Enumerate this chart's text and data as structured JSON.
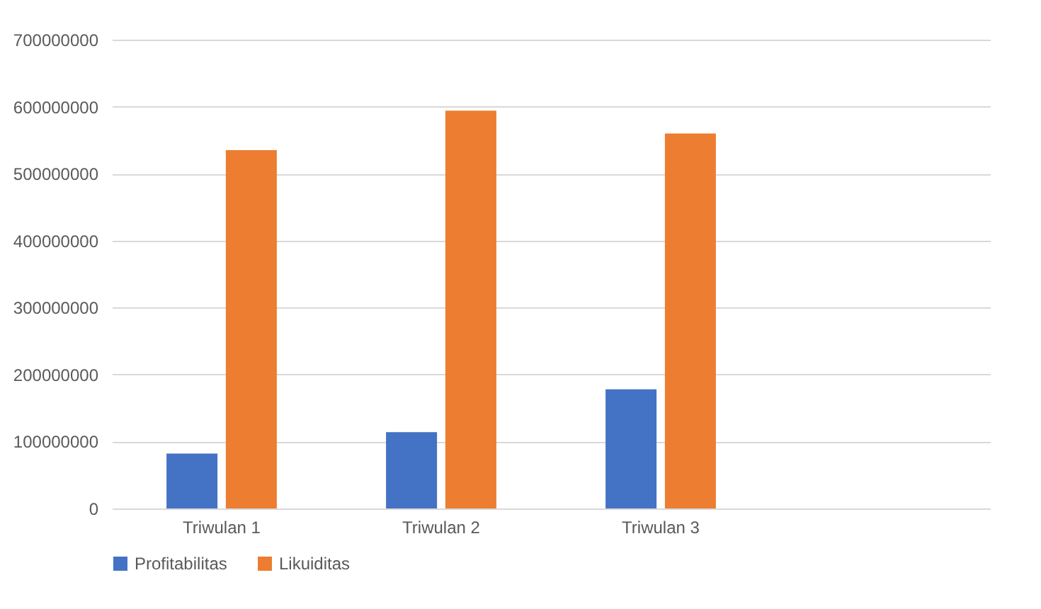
{
  "chart_data": {
    "type": "bar",
    "categories": [
      "Triwulan 1",
      "Triwulan 2",
      "Triwulan 3",
      null
    ],
    "series": [
      {
        "name": "Profitabilitas",
        "color": "#4472c4",
        "values": [
          82000000,
          114000000,
          178000000,
          null
        ]
      },
      {
        "name": "Likuiditas",
        "color": "#ed7d31",
        "values": [
          535000000,
          594000000,
          560000000,
          null
        ]
      }
    ],
    "ylim": [
      0,
      700000000
    ],
    "yticks": [
      0,
      100000000,
      200000000,
      300000000,
      400000000,
      500000000,
      600000000,
      700000000
    ],
    "grid": "y",
    "legend": "bottom"
  }
}
